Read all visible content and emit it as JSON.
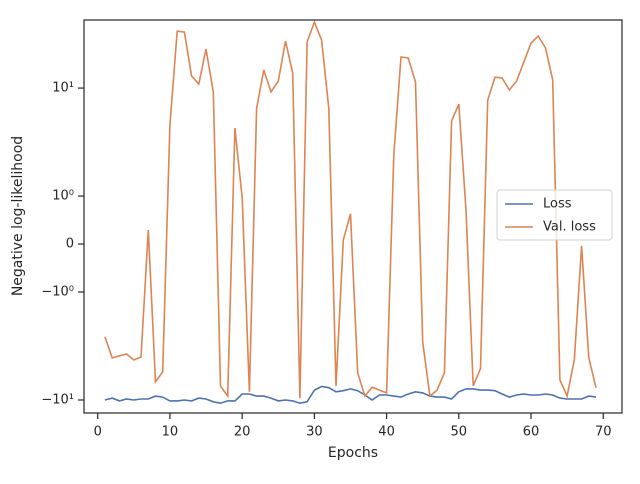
{
  "chart_data": {
    "type": "line",
    "xlabel": "Epochs",
    "ylabel": "Negative log-likelihood",
    "yscale": "symlog",
    "x": [
      1,
      2,
      3,
      4,
      5,
      6,
      7,
      8,
      9,
      10,
      11,
      12,
      13,
      14,
      15,
      16,
      17,
      18,
      19,
      20,
      21,
      22,
      23,
      24,
      25,
      26,
      27,
      28,
      29,
      30,
      31,
      32,
      33,
      34,
      35,
      36,
      37,
      38,
      39,
      40,
      41,
      42,
      43,
      44,
      45,
      46,
      47,
      48,
      49,
      50,
      51,
      52,
      53,
      54,
      55,
      56,
      57,
      58,
      59,
      60,
      61,
      62,
      63,
      64,
      65,
      66,
      67,
      68,
      69
    ],
    "series": [
      {
        "name": "Loss",
        "color": "#4c72b0",
        "values": [
          -10,
          -9.6,
          -10.2,
          -9.8,
          -10,
          -9.8,
          -9.8,
          -9.2,
          -9.4,
          -10.2,
          -10.2,
          -10,
          -10.2,
          -9.6,
          -9.8,
          -10.4,
          -10.7,
          -10.2,
          -10.2,
          -8.8,
          -8.8,
          -9.2,
          -9.2,
          -9.6,
          -10.2,
          -10,
          -10.2,
          -10.7,
          -10.4,
          -8.1,
          -7.5,
          -7.7,
          -8.4,
          -8.2,
          -7.9,
          -8.2,
          -9.0,
          -10,
          -9.0,
          -9.0,
          -9.2,
          -9.4,
          -8.8,
          -8.4,
          -8.6,
          -9.2,
          -9.4,
          -9.4,
          -9.8,
          -8.4,
          -7.9,
          -7.9,
          -8.1,
          -8.1,
          -8.2,
          -8.8,
          -9.4,
          -9.0,
          -8.8,
          -9.0,
          -9.0,
          -8.8,
          -9.0,
          -9.6,
          -9.8,
          -9.8,
          -9.8,
          -9.2,
          -9.4
        ]
      },
      {
        "name": "Val. loss",
        "color": "#dd8452",
        "values": [
          -2.6,
          -4.08,
          -3.9,
          -3.75,
          -4.26,
          -4.0,
          0.29,
          -6.8,
          -5.5,
          4.54,
          33.7,
          33.0,
          12.9,
          10.9,
          23.0,
          9.2,
          -7.4,
          -9.2,
          4.26,
          0.96,
          -8.4,
          6.5,
          14.7,
          9.2,
          11.6,
          27.2,
          13.8,
          -9.6,
          26.7,
          40.8,
          27.8,
          6.5,
          -7.4,
          0.083,
          0.63,
          -5.6,
          -9.2,
          -7.6,
          -8.1,
          -8.6,
          2.4,
          19.4,
          19.0,
          11.4,
          -2.9,
          -9.2,
          -8.1,
          -5.6,
          4.95,
          7.1,
          0.71,
          -7.4,
          -5.1,
          7.7,
          12.6,
          12.4,
          9.6,
          11.6,
          17.4,
          26.1,
          30.3,
          23.5,
          11.9,
          -6.5,
          -9.2,
          -4.26,
          -0.04,
          -4.08,
          -7.7
        ]
      }
    ],
    "xlim": [
      -1.9,
      72.6
    ],
    "xticks": [
      0,
      10,
      20,
      30,
      40,
      50,
      60,
      70
    ],
    "ylim": [
      -13.2,
      42.7
    ],
    "yticks": [
      {
        "value": -10,
        "label": "−10¹"
      },
      {
        "value": -1,
        "label": "−10⁰"
      },
      0,
      {
        "value": 1,
        "label": "10⁰"
      },
      {
        "value": 10,
        "label": "10¹"
      }
    ],
    "legend": "right"
  }
}
